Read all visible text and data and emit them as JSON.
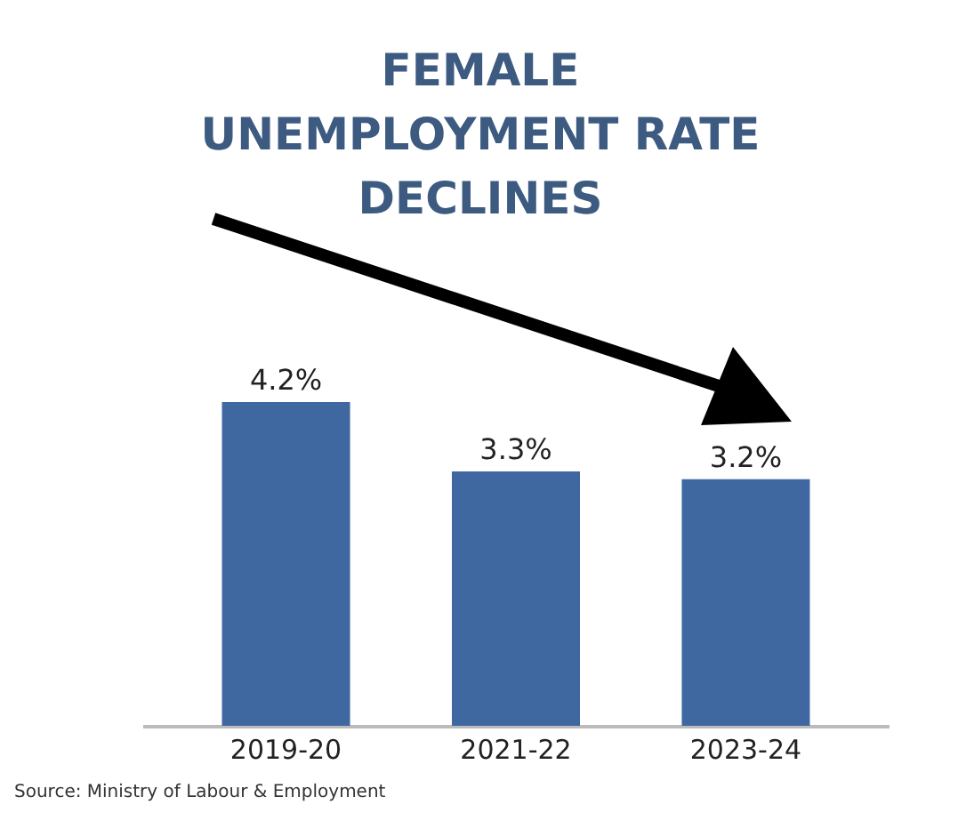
{
  "chart_data": {
    "type": "bar",
    "title": "FEMALE UNEMPLOYMENT RATE DECLINES",
    "categories": [
      "2019-20",
      "2021-22",
      "2023-24"
    ],
    "values": [
      4.2,
      3.3,
      3.2
    ],
    "value_labels": [
      "4.2%",
      "3.3%",
      "3.2%"
    ],
    "color": "#3f68a0",
    "annotations": [
      "Source: Ministry of Labour & Employment"
    ]
  }
}
